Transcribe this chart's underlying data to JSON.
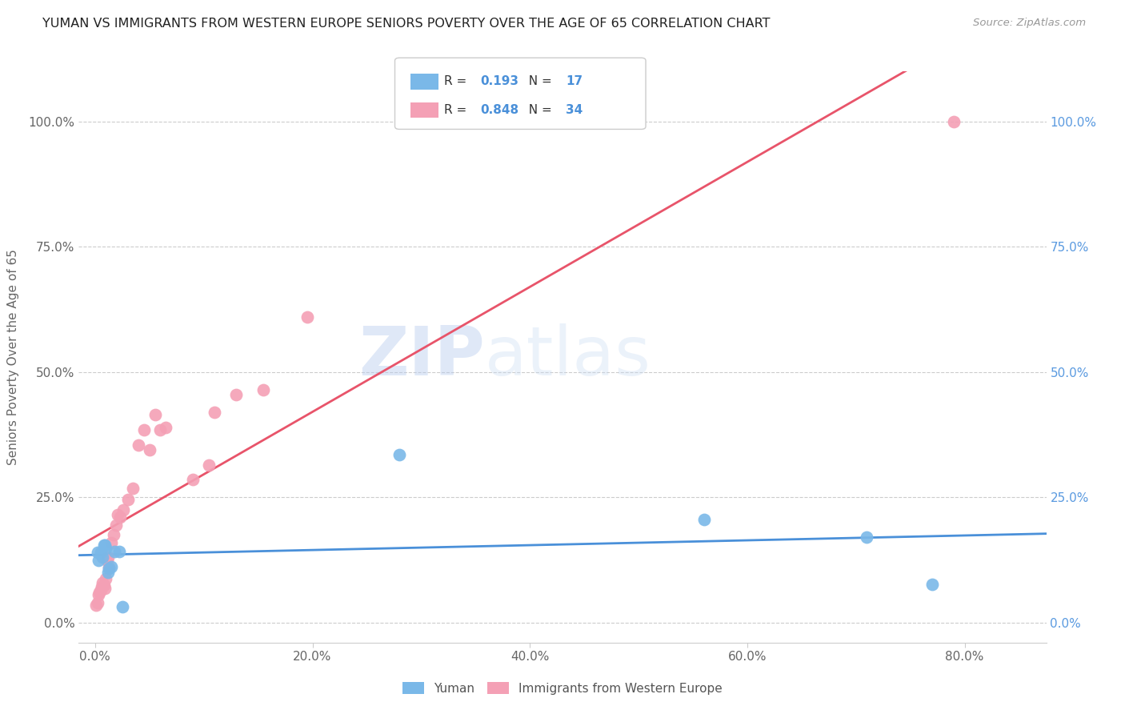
{
  "title": "YUMAN VS IMMIGRANTS FROM WESTERN EUROPE SENIORS POVERTY OVER THE AGE OF 65 CORRELATION CHART",
  "source": "Source: ZipAtlas.com",
  "xlabel_ticks": [
    "0.0%",
    "",
    "",
    "",
    "20.0%",
    "",
    "",
    "",
    "40.0%",
    "",
    "",
    "",
    "60.0%",
    "",
    "",
    "",
    "80.0%"
  ],
  "xlabel_tick_vals": [
    0.0,
    0.05,
    0.1,
    0.15,
    0.2,
    0.25,
    0.3,
    0.35,
    0.4,
    0.45,
    0.5,
    0.55,
    0.6,
    0.65,
    0.7,
    0.75,
    0.8
  ],
  "ylabel_ticks": [
    "0.0%",
    "25.0%",
    "50.0%",
    "75.0%",
    "100.0%"
  ],
  "ylabel_tick_vals": [
    0.0,
    0.25,
    0.5,
    0.75,
    1.0
  ],
  "ylabel_label": "Seniors Poverty Over the Age of 65",
  "yuman_R": 0.193,
  "yuman_N": 17,
  "immigrants_R": 0.848,
  "immigrants_N": 34,
  "blue_color": "#7ab8e8",
  "pink_color": "#f4a0b5",
  "blue_line_color": "#4a90d9",
  "pink_line_color": "#e8546a",
  "yuman_x": [
    0.002,
    0.003,
    0.005,
    0.007,
    0.008,
    0.009,
    0.01,
    0.012,
    0.013,
    0.015,
    0.018,
    0.022,
    0.025,
    0.28,
    0.56,
    0.71,
    0.77
  ],
  "yuman_y": [
    0.14,
    0.125,
    0.14,
    0.13,
    0.155,
    0.155,
    0.148,
    0.1,
    0.108,
    0.112,
    0.142,
    0.142,
    0.032,
    0.335,
    0.205,
    0.17,
    0.077
  ],
  "immigrants_x": [
    0.001,
    0.002,
    0.003,
    0.004,
    0.005,
    0.006,
    0.007,
    0.008,
    0.009,
    0.01,
    0.011,
    0.012,
    0.013,
    0.015,
    0.017,
    0.019,
    0.021,
    0.023,
    0.026,
    0.03,
    0.035,
    0.04,
    0.045,
    0.05,
    0.055,
    0.06,
    0.065,
    0.09,
    0.105,
    0.11,
    0.13,
    0.155,
    0.195,
    0.79
  ],
  "immigrants_y": [
    0.035,
    0.04,
    0.055,
    0.06,
    0.065,
    0.072,
    0.08,
    0.075,
    0.068,
    0.088,
    0.125,
    0.13,
    0.11,
    0.16,
    0.175,
    0.195,
    0.215,
    0.21,
    0.225,
    0.245,
    0.268,
    0.355,
    0.385,
    0.345,
    0.415,
    0.385,
    0.39,
    0.285,
    0.315,
    0.42,
    0.455,
    0.465,
    0.61,
    1.0
  ],
  "watermark_zip": "ZIP",
  "watermark_atlas": "atlas",
  "xlim": [
    -0.015,
    0.875
  ],
  "ylim": [
    -0.04,
    1.1
  ]
}
